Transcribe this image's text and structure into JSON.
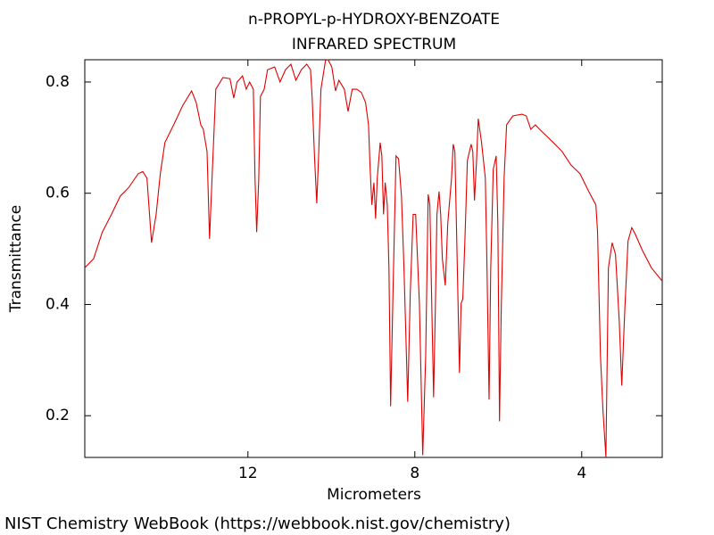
{
  "chart_data": {
    "type": "line",
    "title": "n-PROPYL-p-HYDROXY-BENZOATE",
    "subtitle": "INFRARED SPECTRUM",
    "x_label": "Micrometers",
    "y_label": "Transmittance",
    "source": "NIST Chemistry WebBook (https://webbook.nist.gov/chemistry)",
    "color": "#e00000",
    "xlim": [
      15.91,
      2.07
    ],
    "ylim": [
      0.125,
      0.84
    ],
    "xticks": [
      12,
      8,
      4
    ],
    "yticks": [
      0.2,
      0.4,
      0.6,
      0.8
    ],
    "x": [
      15.91,
      15.7,
      15.49,
      15.27,
      15.06,
      14.95,
      14.85,
      14.63,
      14.52,
      14.42,
      14.31,
      14.2,
      14.1,
      13.99,
      13.78,
      13.56,
      13.35,
      13.24,
      13.13,
      13.07,
      12.98,
      12.92,
      12.86,
      12.77,
      12.6,
      12.43,
      12.34,
      12.26,
      12.13,
      12.04,
      11.96,
      11.87,
      11.83,
      11.79,
      11.74,
      11.7,
      11.61,
      11.53,
      11.36,
      11.23,
      11.1,
      10.97,
      10.85,
      10.72,
      10.59,
      10.5,
      10.46,
      10.4,
      10.35,
      10.31,
      10.25,
      10.14,
      10.08,
      9.99,
      9.9,
      9.82,
      9.69,
      9.6,
      9.5,
      9.39,
      9.28,
      9.18,
      9.11,
      9.07,
      9.03,
      8.98,
      8.94,
      8.9,
      8.83,
      8.79,
      8.75,
      8.71,
      8.66,
      8.62,
      8.58,
      8.51,
      8.45,
      8.39,
      8.32,
      8.26,
      8.17,
      8.11,
      8.04,
      7.98,
      7.89,
      7.81,
      7.74,
      7.68,
      7.64,
      7.59,
      7.55,
      7.51,
      7.47,
      7.42,
      7.38,
      7.34,
      7.27,
      7.21,
      7.12,
      7.08,
      7.04,
      6.99,
      6.93,
      6.89,
      6.85,
      6.8,
      6.74,
      6.65,
      6.61,
      6.57,
      6.52,
      6.48,
      6.4,
      6.31,
      6.27,
      6.22,
      6.18,
      6.12,
      6.05,
      6.01,
      5.97,
      5.93,
      5.86,
      5.8,
      5.65,
      5.43,
      5.33,
      5.22,
      5.11,
      5.01,
      4.9,
      4.68,
      4.47,
      4.26,
      4.15,
      4.04,
      3.83,
      3.66,
      3.62,
      3.55,
      3.49,
      3.42,
      3.36,
      3.27,
      3.19,
      3.1,
      3.04,
      2.97,
      2.89,
      2.8,
      2.72,
      2.55,
      2.33,
      2.07
    ],
    "values": [
      0.466,
      0.482,
      0.53,
      0.562,
      0.595,
      0.603,
      0.611,
      0.635,
      0.639,
      0.627,
      0.511,
      0.562,
      0.635,
      0.691,
      0.723,
      0.758,
      0.784,
      0.763,
      0.723,
      0.715,
      0.675,
      0.518,
      0.627,
      0.787,
      0.808,
      0.806,
      0.771,
      0.8,
      0.811,
      0.787,
      0.8,
      0.787,
      0.627,
      0.53,
      0.627,
      0.774,
      0.787,
      0.822,
      0.827,
      0.8,
      0.822,
      0.832,
      0.803,
      0.822,
      0.832,
      0.822,
      0.771,
      0.659,
      0.582,
      0.659,
      0.787,
      0.839,
      0.84,
      0.827,
      0.784,
      0.803,
      0.787,
      0.747,
      0.787,
      0.787,
      0.781,
      0.763,
      0.723,
      0.643,
      0.579,
      0.619,
      0.554,
      0.627,
      0.691,
      0.667,
      0.562,
      0.619,
      0.579,
      0.466,
      0.217,
      0.466,
      0.667,
      0.662,
      0.595,
      0.466,
      0.225,
      0.418,
      0.562,
      0.562,
      0.402,
      0.129,
      0.306,
      0.598,
      0.579,
      0.386,
      0.233,
      0.386,
      0.562,
      0.603,
      0.562,
      0.482,
      0.434,
      0.546,
      0.627,
      0.688,
      0.675,
      0.498,
      0.277,
      0.402,
      0.41,
      0.514,
      0.659,
      0.688,
      0.675,
      0.587,
      0.659,
      0.734,
      0.691,
      0.627,
      0.466,
      0.229,
      0.466,
      0.643,
      0.667,
      0.546,
      0.19,
      0.386,
      0.627,
      0.723,
      0.739,
      0.742,
      0.739,
      0.715,
      0.723,
      0.715,
      0.707,
      0.691,
      0.675,
      0.651,
      0.643,
      0.635,
      0.603,
      0.579,
      0.53,
      0.306,
      0.209,
      0.126,
      0.466,
      0.511,
      0.49,
      0.37,
      0.254,
      0.386,
      0.514,
      0.538,
      0.527,
      0.498,
      0.466,
      0.442
    ]
  }
}
